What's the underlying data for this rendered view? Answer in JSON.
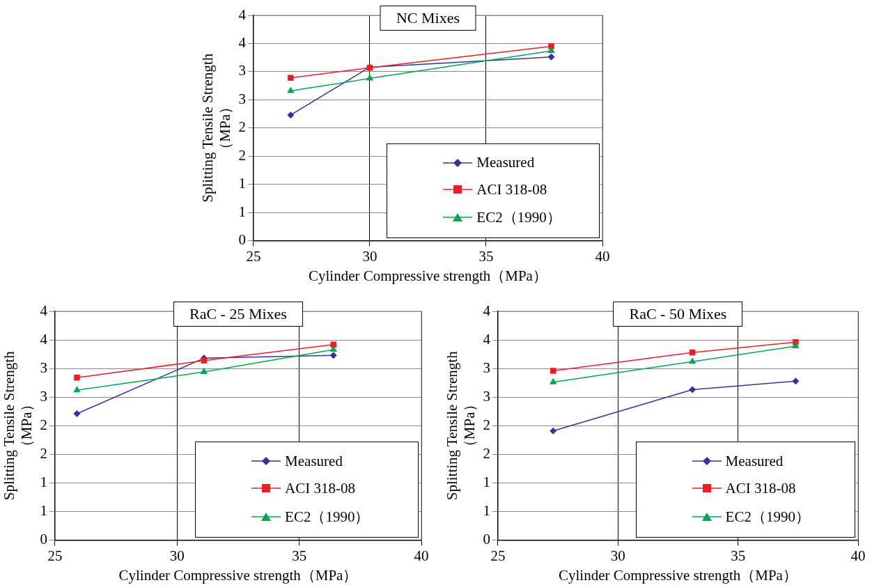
{
  "chart_data": [
    {
      "type": "line",
      "title": "NC Mixes",
      "xlabel": "Cylinder Compressive strength（MPa）",
      "ylabel": "Splitting Tensile Strength（MPa）",
      "xlim": [
        25,
        40
      ],
      "xticks": [
        25,
        30,
        35,
        40
      ],
      "ylim": [
        0,
        4
      ],
      "yticks": [
        0,
        {
          "value": 0.5,
          "label": "1"
        },
        1,
        {
          "value": 1.5,
          "label": "2"
        },
        2,
        {
          "value": 2.5,
          "label": "3"
        },
        3,
        {
          "value": 3.5,
          "label": "4"
        },
        4
      ],
      "grid": true,
      "legend": "bottom right",
      "series": [
        {
          "name": "Measured",
          "color": "#333399",
          "marker": "diamond",
          "x": [
            26.6,
            30.0,
            37.8
          ],
          "values": [
            2.23,
            3.08,
            3.26
          ]
        },
        {
          "name": "ACI 318-08",
          "color": "#ee1c25",
          "marker": "square",
          "x": [
            26.6,
            30.0,
            37.8
          ],
          "values": [
            2.89,
            3.07,
            3.45
          ]
        },
        {
          "name": "EC2（1990）",
          "color": "#00a650",
          "marker": "triangle",
          "x": [
            26.6,
            30.0,
            37.8
          ],
          "values": [
            2.66,
            2.88,
            3.37
          ]
        }
      ]
    },
    {
      "type": "line",
      "title": "RaC - 25 Mixes",
      "xlabel": "Cylinder Compressive strength（MPa）",
      "ylabel": "Splitting Tensile Strength（MPa）",
      "xlim": [
        25,
        40
      ],
      "xticks": [
        25,
        30,
        35,
        40
      ],
      "ylim": [
        0,
        4
      ],
      "yticks": [
        0,
        {
          "value": 0.5,
          "label": "1"
        },
        1,
        {
          "value": 1.5,
          "label": "2"
        },
        2,
        {
          "value": 2.5,
          "label": "3"
        },
        3,
        {
          "value": 3.5,
          "label": "4"
        },
        4
      ],
      "grid": true,
      "legend": "bottom right",
      "series": [
        {
          "name": "Measured",
          "color": "#333399",
          "marker": "diamond",
          "x": [
            25.9,
            31.1,
            36.4
          ],
          "values": [
            2.21,
            3.18,
            3.23
          ]
        },
        {
          "name": "ACI 318-08",
          "color": "#ee1c25",
          "marker": "square",
          "x": [
            25.9,
            31.1,
            36.4
          ],
          "values": [
            2.84,
            3.14,
            3.42
          ]
        },
        {
          "name": "EC2（1990）",
          "color": "#00a650",
          "marker": "triangle",
          "x": [
            25.9,
            31.1,
            36.4
          ],
          "values": [
            2.62,
            2.94,
            3.33
          ]
        }
      ]
    },
    {
      "type": "line",
      "title": "RaC - 50 Mixes",
      "xlabel": "Cylinder Compressive strength（MPa）",
      "ylabel": "Splitting Tensile Strength（MPa）",
      "xlim": [
        25,
        40
      ],
      "xticks": [
        25,
        30,
        35,
        40
      ],
      "ylim": [
        0,
        4
      ],
      "yticks": [
        0,
        {
          "value": 0.5,
          "label": "1"
        },
        1,
        {
          "value": 1.5,
          "label": "2"
        },
        2,
        {
          "value": 2.5,
          "label": "3"
        },
        3,
        {
          "value": 3.5,
          "label": "4"
        },
        4
      ],
      "grid": true,
      "legend": "bottom right",
      "series": [
        {
          "name": "Measured",
          "color": "#333399",
          "marker": "diamond",
          "x": [
            27.3,
            33.1,
            37.4
          ],
          "values": [
            1.91,
            2.63,
            2.78
          ]
        },
        {
          "name": "ACI 318-08",
          "color": "#ee1c25",
          "marker": "square",
          "x": [
            27.3,
            33.1,
            37.4
          ],
          "values": [
            2.96,
            3.28,
            3.46
          ]
        },
        {
          "name": "EC2（1990）",
          "color": "#00a650",
          "marker": "triangle",
          "x": [
            27.3,
            33.1,
            37.4
          ],
          "values": [
            2.76,
            3.12,
            3.39
          ]
        }
      ]
    }
  ]
}
